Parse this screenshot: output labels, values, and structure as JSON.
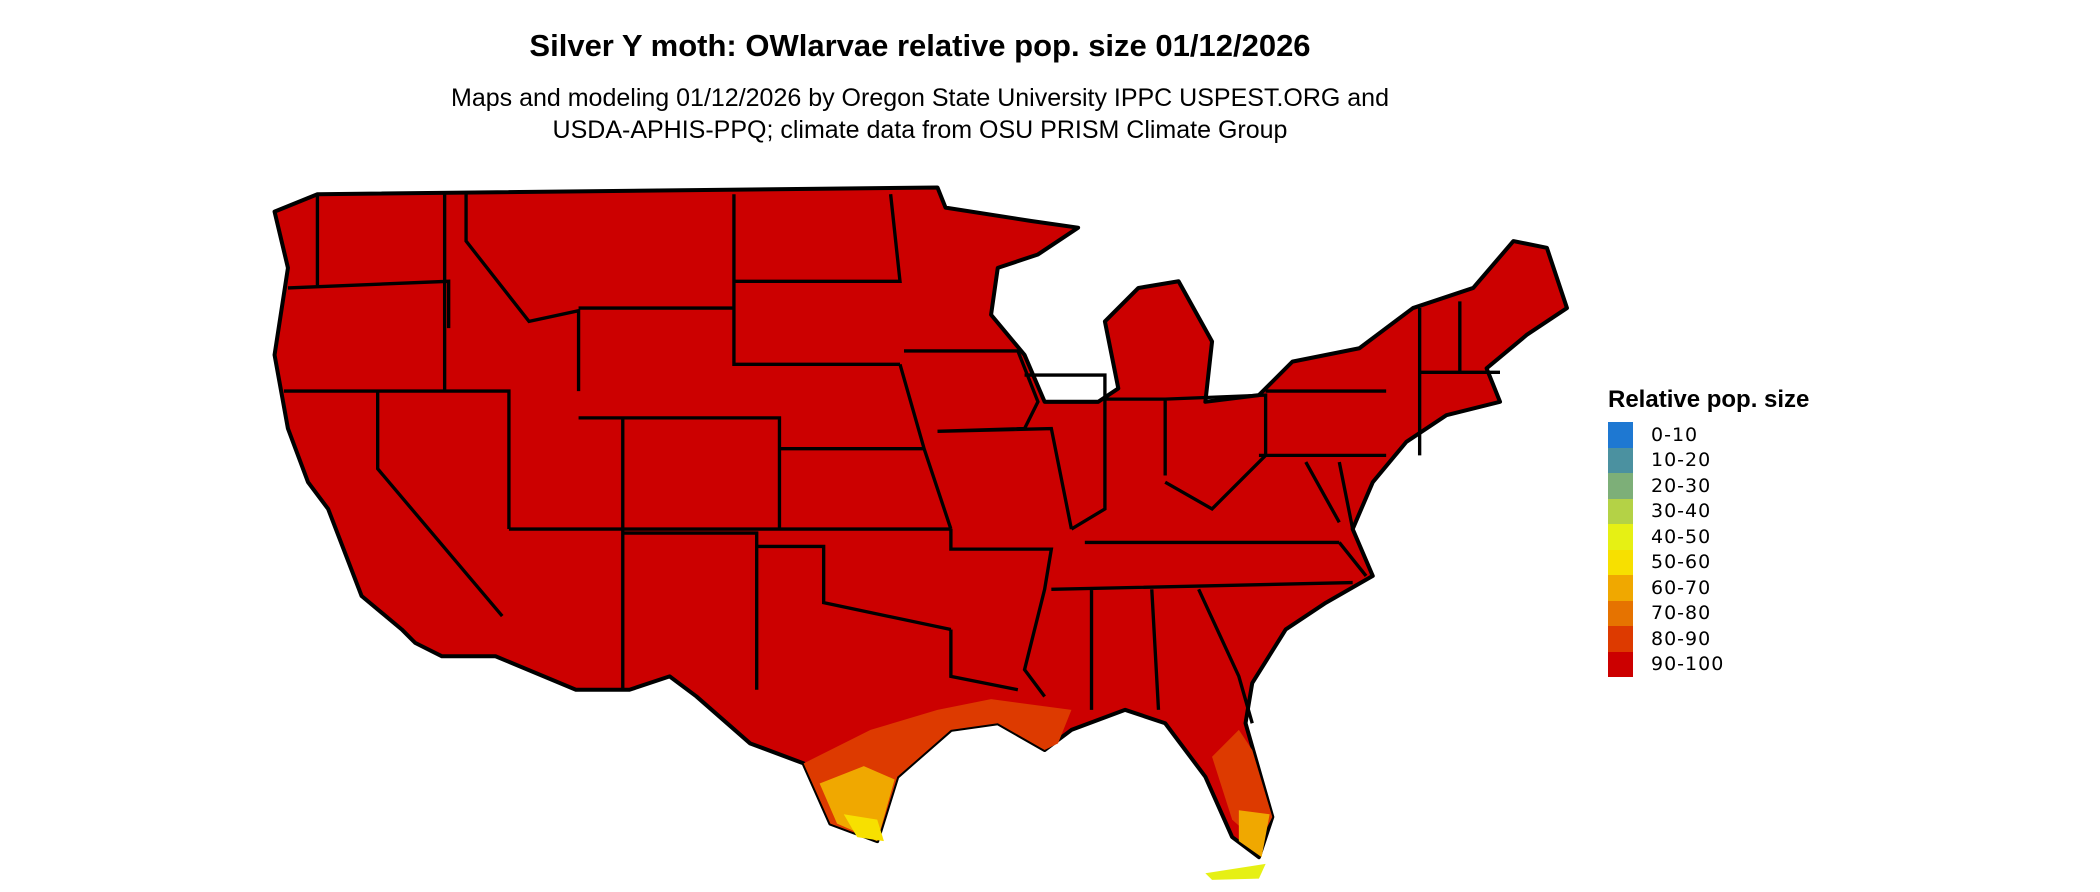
{
  "title": "Silver Y moth: OWlarvae relative pop. size 01/12/2026",
  "subtitle_line1": "Maps and modeling 01/12/2026 by Oregon State University IPPC USPEST.ORG and",
  "subtitle_line2": "USDA-APHIS-PPQ; climate data from OSU PRISM Climate Group",
  "legend": {
    "title": "Relative pop. size",
    "items": [
      {
        "label": "0-10",
        "color": "#1e78d2"
      },
      {
        "label": "10-20",
        "color": "#4b91a0"
      },
      {
        "label": "20-30",
        "color": "#7daf78"
      },
      {
        "label": "30-40",
        "color": "#b4d246"
      },
      {
        "label": "40-50",
        "color": "#e6f014"
      },
      {
        "label": "50-60",
        "color": "#f7e000"
      },
      {
        "label": "60-70",
        "color": "#f0a800"
      },
      {
        "label": "70-80",
        "color": "#e67300"
      },
      {
        "label": "80-90",
        "color": "#dd3a00"
      },
      {
        "label": "90-100",
        "color": "#cc0000"
      }
    ]
  },
  "map": {
    "region": "Contiguous United States",
    "dominant_class": "90-100",
    "notes_classes_present": [
      "90-100",
      "80-90",
      "70-80",
      "60-70",
      "50-60",
      "40-50"
    ]
  }
}
